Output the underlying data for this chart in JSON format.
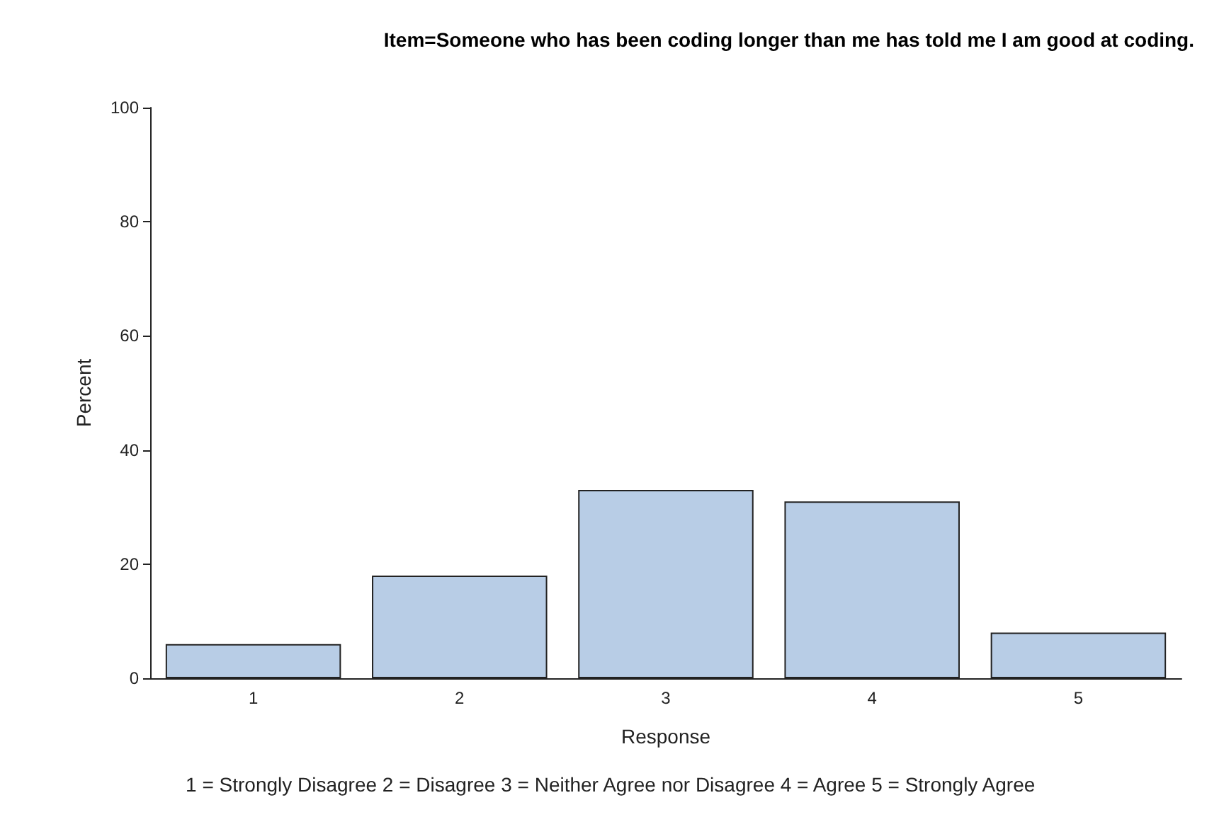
{
  "chart_data": {
    "type": "bar",
    "title": "Item=Someone who has been coding longer than me has told me I am good at coding.",
    "xlabel": "Response",
    "ylabel": "Percent",
    "categories": [
      "1",
      "2",
      "3",
      "4",
      "5"
    ],
    "values": [
      6,
      18,
      33,
      31,
      8
    ],
    "color": "#b8cde6",
    "ylim": [
      0,
      100
    ],
    "yticks": [
      0,
      20,
      40,
      60,
      80,
      100
    ],
    "grid": false,
    "annotations": [
      "1 = Strongly Disagree 2 = Disagree 3 = Neither Agree nor Disagree 4 = Agree 5 = Strongly Agree"
    ]
  }
}
